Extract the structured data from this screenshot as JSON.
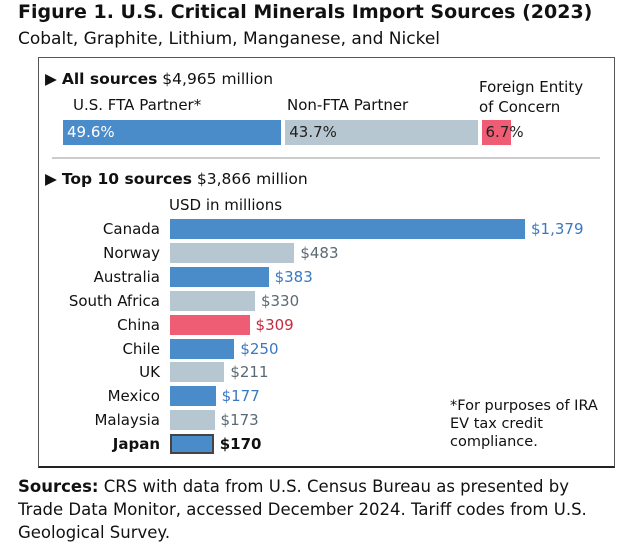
{
  "title": "Figure 1. U.S. Critical Minerals Import Sources (2023)",
  "subtitle": "Cobalt, Graphite, Lithium, Manganese, and Nickel",
  "all_sources": {
    "heading_bold": "All sources",
    "heading_rest": "$4,965 million",
    "segments": [
      {
        "label": "U.S. FTA Partner*",
        "pct": 49.6,
        "text": "49.6%",
        "color": "#4a8bc9",
        "text_color": "#ffffff"
      },
      {
        "label": "Non-FTA Partner",
        "pct": 43.7,
        "text": "43.7%",
        "color": "#b6c7d2",
        "text_color": "#222222"
      },
      {
        "label_line1": "Foreign Entity",
        "label_line2": "of Concern",
        "pct": 6.7,
        "text": "6.7%",
        "color": "#ef5d74",
        "text_color": "#222222"
      }
    ]
  },
  "top10": {
    "heading_bold": "Top 10 sources",
    "heading_rest": "$3,866 million"
  },
  "chart_data": {
    "type": "bar",
    "orientation": "horizontal",
    "xlabel": "USD in millions",
    "categories": [
      "Canada",
      "Norway",
      "Australia",
      "South Africa",
      "China",
      "Chile",
      "UK",
      "Mexico",
      "Malaysia",
      "Japan"
    ],
    "values": [
      1379,
      483,
      383,
      330,
      309,
      250,
      211,
      177,
      173,
      170
    ],
    "labels": [
      "$1,379",
      "$483",
      "$383",
      "$330",
      "$309",
      "$250",
      "$211",
      "$177",
      "$173",
      "$170"
    ],
    "groups": [
      "fta",
      "non",
      "fta",
      "non",
      "foec",
      "fta",
      "non",
      "fta",
      "non",
      "fta"
    ],
    "colors": {
      "fta": "#4a8bc9",
      "non": "#b6c7d2",
      "foec": "#ef5d74"
    },
    "label_colors": {
      "fta": "#3a78c0",
      "non": "#5a6a74",
      "foec": "#c42a40"
    },
    "highlight": "Japan"
  },
  "note": "*For purposes of IRA EV tax credit compliance.",
  "sources_bold": "Sources:",
  "sources_rest": " CRS with data from U.S. Census Bureau as presented by Trade Data Monitor, accessed December 2024. Tariff codes from U.S. Geological Survey."
}
